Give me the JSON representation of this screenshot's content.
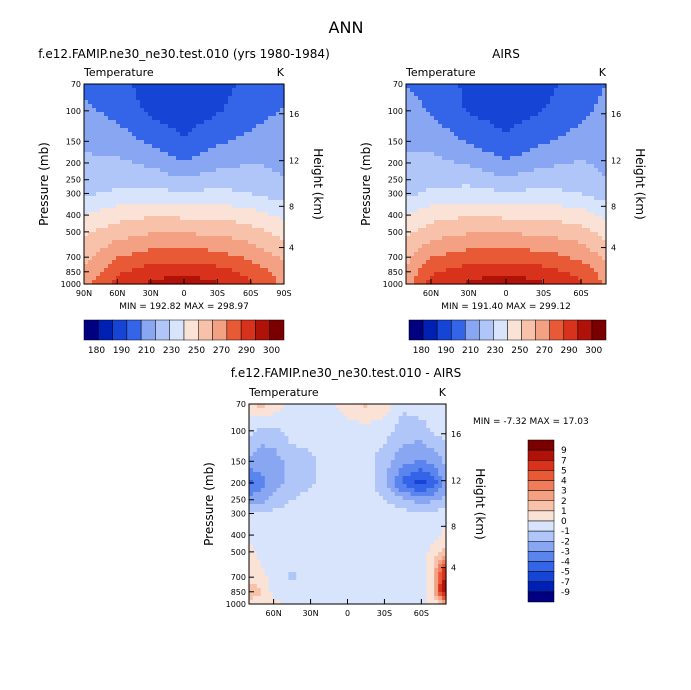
{
  "page_title": "ANN",
  "palette": {
    "colors": [
      "#000080",
      "#0020b4",
      "#1645d6",
      "#3464e8",
      "#5a84ee",
      "#88a6f2",
      "#b0c6f8",
      "#d8e4fb",
      "#fbe2d6",
      "#f8c2aa",
      "#f4a083",
      "#ef7c5a",
      "#e85a36",
      "#d8321c",
      "#b0120a",
      "#7a0000"
    ],
    "bad_color": "#ffffff"
  },
  "chart_data": [
    {
      "type": "heatmap",
      "panel_id": "model",
      "title": "f.e12.FAMIP.ne30_ne30.test.010 (yrs 1980-1984)",
      "left_label": "Temperature",
      "right_label": "K",
      "ylabel": "Pressure (mb)",
      "y2label": "Height (km)",
      "xticks": [
        "90N",
        "60N",
        "30N",
        "0",
        "30S",
        "60S",
        "90S"
      ],
      "xtick_values": [
        90,
        60,
        30,
        0,
        -30,
        -60,
        -90
      ],
      "xlim": [
        90,
        -90
      ],
      "yticks": [
        70,
        100,
        150,
        200,
        250,
        300,
        400,
        500,
        700,
        850,
        1000
      ],
      "ylim": [
        70,
        1000
      ],
      "y_scale": "log",
      "y2ticks": [
        4,
        8,
        12,
        16
      ],
      "y2_pressure": [
        616,
        356,
        194,
        104
      ],
      "stats": "MIN = 192.82   MAX = 298.97",
      "levels": [
        180,
        190,
        200,
        210,
        220,
        230,
        240,
        250,
        260,
        270,
        280,
        290,
        300
      ],
      "colorbar_labels": [
        "180",
        "190",
        "210",
        "230",
        "250",
        "270",
        "290",
        "300"
      ],
      "lat_grid": [
        90,
        60,
        30,
        0,
        -30,
        -60,
        -90
      ],
      "p_grid": [
        70,
        100,
        150,
        200,
        250,
        300,
        400,
        500,
        700,
        850,
        1000
      ],
      "values": [
        [
          206,
          203,
          196,
          193,
          196,
          203,
          207
        ],
        [
          213,
          206,
          198,
          194,
          199,
          205,
          211
        ],
        [
          219,
          216,
          208,
          201,
          208,
          213,
          218
        ],
        [
          221,
          222,
          218,
          211,
          217,
          220,
          218
        ],
        [
          224,
          226,
          226,
          221,
          225,
          225,
          220
        ],
        [
          228,
          232,
          234,
          231,
          233,
          230,
          225
        ],
        [
          240,
          246,
          249,
          248,
          248,
          244,
          238
        ],
        [
          248,
          255,
          259,
          259,
          258,
          254,
          246
        ],
        [
          257,
          270,
          275,
          276,
          274,
          268,
          258
        ],
        [
          262,
          278,
          285,
          287,
          284,
          277,
          264
        ],
        [
          266,
          284,
          292,
          298,
          291,
          282,
          268
        ]
      ]
    },
    {
      "type": "heatmap",
      "panel_id": "obs",
      "title": "AIRS",
      "left_label": "Temperature",
      "right_label": "K",
      "ylabel": "Pressure (mb)",
      "y2label": "Height (km)",
      "xticks": [
        "60N",
        "30N",
        "0",
        "30S",
        "60S"
      ],
      "xtick_values": [
        60,
        30,
        0,
        -30,
        -60
      ],
      "xlim": [
        80,
        -80
      ],
      "yticks": [
        70,
        100,
        150,
        200,
        250,
        300,
        400,
        500,
        700,
        850,
        1000
      ],
      "ylim": [
        70,
        1000
      ],
      "y_scale": "log",
      "y2ticks": [
        4,
        8,
        12,
        16
      ],
      "y2_pressure": [
        616,
        356,
        194,
        104
      ],
      "stats": "MIN = 191.40   MAX = 299.12",
      "levels": [
        180,
        190,
        200,
        210,
        220,
        230,
        240,
        250,
        260,
        270,
        280,
        290,
        300
      ],
      "colorbar_labels": [
        "180",
        "190",
        "210",
        "230",
        "250",
        "270",
        "290",
        "300"
      ],
      "lat_grid": [
        80,
        60,
        30,
        0,
        -30,
        -60,
        -80
      ],
      "p_grid": [
        70,
        100,
        150,
        200,
        250,
        300,
        400,
        500,
        700,
        850,
        1000
      ],
      "values": [
        [
          210,
          206,
          198,
          193,
          197,
          205,
          210
        ],
        [
          214,
          209,
          199,
          195,
          200,
          207,
          213
        ],
        [
          219,
          217,
          209,
          202,
          209,
          214,
          218
        ],
        [
          221,
          223,
          219,
          211,
          218,
          221,
          218
        ],
        [
          224,
          226,
          227,
          222,
          226,
          225,
          220
        ],
        [
          228,
          232,
          234,
          231,
          233,
          230,
          225
        ],
        [
          240,
          246,
          249,
          248,
          248,
          244,
          238
        ],
        [
          248,
          255,
          259,
          259,
          258,
          254,
          246
        ],
        [
          257,
          270,
          275,
          276,
          274,
          268,
          258
        ],
        [
          262,
          278,
          285,
          287,
          284,
          277,
          264
        ],
        [
          266,
          284,
          292,
          299,
          291,
          282,
          268
        ]
      ]
    },
    {
      "type": "heatmap",
      "panel_id": "diff",
      "title": "f.e12.FAMIP.ne30_ne30.test.010 - AIRS",
      "left_label": "Temperature",
      "right_label": "K",
      "ylabel": "Pressure (mb)",
      "y2label": "Height (km)",
      "xticks": [
        "60N",
        "30N",
        "0",
        "30S",
        "60S"
      ],
      "xtick_values": [
        60,
        30,
        0,
        -30,
        -60
      ],
      "xlim": [
        80,
        -80
      ],
      "yticks": [
        70,
        100,
        150,
        200,
        250,
        300,
        400,
        500,
        700,
        850,
        1000
      ],
      "ylim": [
        70,
        1000
      ],
      "y_scale": "log",
      "y2ticks": [
        4,
        8,
        12,
        16
      ],
      "y2_pressure": [
        616,
        356,
        194,
        104
      ],
      "stats": "MIN =   -7.32   MAX =   17.03",
      "levels": [
        -9,
        -7,
        -5,
        -4,
        -3,
        -2,
        -1,
        0,
        1,
        2,
        3,
        4,
        5,
        7,
        9
      ],
      "colorbar_labels": [
        "9",
        "7",
        "5",
        "4",
        "3",
        "2",
        "1",
        "0",
        "-1",
        "-2",
        "-3",
        "-4",
        "-5",
        "-7",
        "-9"
      ],
      "lat_grid": [
        80,
        70,
        60,
        45,
        30,
        15,
        0,
        -15,
        -30,
        -45,
        -60,
        -70,
        -80
      ],
      "p_grid": [
        70,
        100,
        150,
        200,
        250,
        300,
        400,
        500,
        700,
        850,
        1000
      ],
      "values": [
        [
          0.5,
          1.5,
          0.8,
          -0.5,
          -0.8,
          -0.3,
          0.5,
          1.2,
          0.6,
          -0.8,
          -0.5,
          -0.5,
          -0.3
        ],
        [
          -0.5,
          -1.5,
          -1.3,
          -0.5,
          -0.5,
          -0.5,
          -0.5,
          -0.5,
          -0.6,
          -1.5,
          -1.4,
          -0.8,
          -0.5
        ],
        [
          -2.2,
          -2.6,
          -2.5,
          -1.6,
          -1.2,
          -0.6,
          -0.5,
          -0.6,
          -1.6,
          -2.6,
          -3.2,
          -2.7,
          -1.8
        ],
        [
          -4.3,
          -3.3,
          -2.5,
          -1.6,
          -1.2,
          -0.6,
          -0.5,
          -0.6,
          -1.6,
          -4.3,
          -5.6,
          -4.5,
          -2.6
        ],
        [
          -2.6,
          -2.4,
          -1.6,
          -1.0,
          -0.6,
          -0.5,
          -0.5,
          -0.5,
          -1.0,
          -1.8,
          -2.5,
          -2.2,
          -1.5
        ],
        [
          -0.8,
          -1.0,
          -0.8,
          -0.6,
          -0.5,
          -0.5,
          -0.5,
          -0.5,
          -0.5,
          -0.6,
          -0.8,
          -0.8,
          -0.6
        ],
        [
          -0.5,
          -0.3,
          -0.3,
          -0.5,
          -0.5,
          -0.5,
          -0.5,
          -0.5,
          -0.5,
          -0.5,
          -0.5,
          -0.5,
          0.5
        ],
        [
          0.5,
          -0.5,
          -0.5,
          -0.5,
          -0.5,
          -0.5,
          -0.5,
          -0.5,
          -0.5,
          -0.5,
          -0.5,
          0.5,
          1.5
        ],
        [
          0.5,
          0.5,
          -0.5,
          -1.2,
          -0.5,
          -0.5,
          -0.5,
          -0.5,
          -0.5,
          -0.5,
          -0.5,
          1.2,
          8.0
        ],
        [
          1.8,
          1.2,
          -0.5,
          -0.5,
          -0.5,
          -0.5,
          -0.5,
          -0.5,
          -0.5,
          -0.5,
          -0.5,
          0.6,
          9.5
        ],
        [
          0.5,
          0.5,
          0.5,
          -0.5,
          -0.5,
          -0.5,
          -0.5,
          -0.5,
          -0.5,
          -0.5,
          -0.5,
          0.5,
          1.0
        ]
      ]
    }
  ]
}
